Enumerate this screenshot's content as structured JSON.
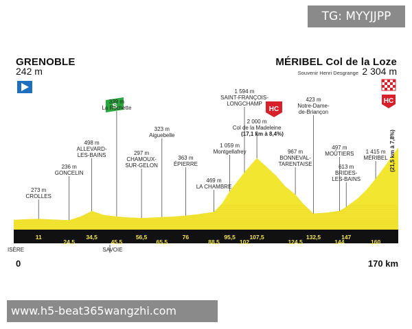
{
  "watermark_top": "TG: MYYJJPP",
  "watermark_bottom": "www.h5-beat365wangzhi.com",
  "start": {
    "name": "GRENOBLE",
    "altitude": "242 m"
  },
  "finish": {
    "name": "MÉRIBEL Col de la Loze",
    "subtitle": "Souvenir Henri Desgrange",
    "altitude": "2 304 m"
  },
  "distance_start": "0",
  "distance_total": "170 km",
  "regions": [
    "ISÈRE",
    "SAVOIE"
  ],
  "badges": {
    "sprint": "S",
    "hc1": "HC",
    "hc2": "HC"
  },
  "climb_note_madeleine": "(17,1 km à 8,4%)",
  "climb_note_loze": "(21,5 km à 7,8%)",
  "waypoints": [
    {
      "alt": "273 m",
      "name": [
        "CROLLES"
      ],
      "km": 11
    },
    {
      "alt": "236 m",
      "name": [
        "GONCELIN"
      ],
      "km": 24.5
    },
    {
      "alt": "498 m",
      "name": [
        "ALLEVARD-",
        "LES-BAINS"
      ],
      "km": 34.5
    },
    {
      "alt": "339 m",
      "name": [
        "La Rochette"
      ],
      "km": 45.5
    },
    {
      "alt": "297 m",
      "name": [
        "CHAMOUX-",
        "SUR-GELON"
      ],
      "km": 56.5
    },
    {
      "alt": "323 m",
      "name": [
        "Aiguebelle"
      ],
      "km": 65.5
    },
    {
      "alt": "363 m",
      "name": [
        "ÉPIERRE"
      ],
      "km": 76
    },
    {
      "alt": "469 m",
      "name": [
        "LA CHAMBRE"
      ],
      "km": 88.5
    },
    {
      "alt": "1 059 m",
      "name": [
        "Montgellafrey"
      ],
      "km": 95.5
    },
    {
      "alt": "1 594 m",
      "name": [
        "SAINT-FRANÇOIS-",
        "LONGCHAMP"
      ],
      "km": 102
    },
    {
      "alt": "2 000 m",
      "name": [
        "Col de la Madeleine"
      ],
      "km": 107.5
    },
    {
      "alt": "967 m",
      "name": [
        "BONNEVAL-",
        "TARENTAISE"
      ],
      "km": 124.5
    },
    {
      "alt": "423 m",
      "name": [
        "Notre-Dame-",
        "de-Briançon"
      ],
      "km": 132.5
    },
    {
      "alt": "497 m",
      "name": [
        "MOÛTIERS"
      ],
      "km": 144
    },
    {
      "alt": "613 m",
      "name": [
        "BRIDES-",
        "LES-BAINS"
      ],
      "km": 147
    },
    {
      "alt": "1 415 m",
      "name": [
        "MÉRIBEL"
      ],
      "km": 160
    }
  ],
  "km_marks": [
    "11",
    "24,5",
    "34,5",
    "45,5",
    "56,5",
    "65,5",
    "76",
    "88,5",
    "95,5",
    "102",
    "107,5",
    "124,5",
    "132,5",
    "144",
    "147",
    "160"
  ],
  "profile": {
    "km": [
      0,
      5,
      11,
      18,
      24.5,
      30,
      34.5,
      40,
      45.5,
      51,
      56.5,
      61,
      65.5,
      71,
      76,
      82,
      88.5,
      92,
      95.5,
      99,
      102,
      105,
      107.5,
      111,
      116,
      120,
      124.5,
      128,
      132.5,
      138,
      144,
      147,
      152,
      156,
      160,
      165,
      170
    ],
    "alt": [
      242,
      260,
      273,
      250,
      236,
      350,
      498,
      380,
      339,
      310,
      297,
      305,
      323,
      340,
      363,
      410,
      469,
      700,
      1059,
      1350,
      1594,
      1820,
      2000,
      1800,
      1500,
      1200,
      967,
      700,
      423,
      450,
      497,
      613,
      850,
      1100,
      1415,
      1850,
      2304
    ]
  },
  "colors": {
    "profile": "#f2e630",
    "base": "#111111",
    "sprint": "#2aa63c",
    "hc": "#d8202a",
    "start_flag": "#1f6fc0"
  }
}
